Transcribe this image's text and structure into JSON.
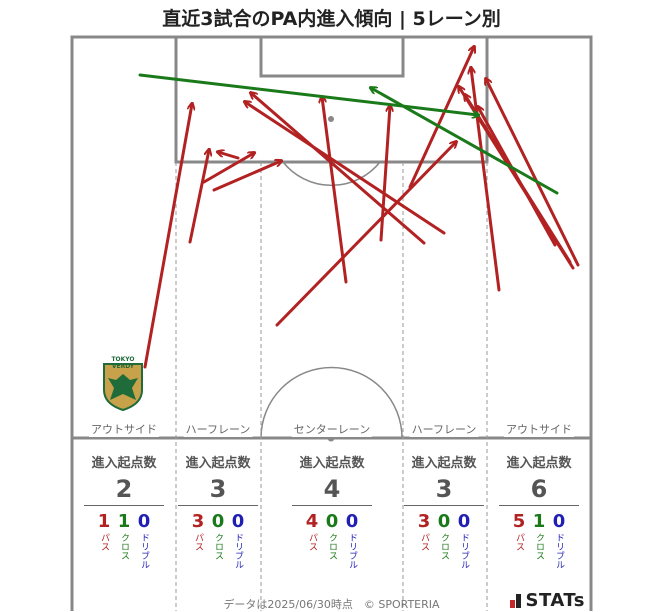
{
  "title": "直近3試合のPA内進入傾向 | 5レーン別",
  "lanes": [
    {
      "label": "アウトサイド",
      "header": "進入起点数",
      "total": "2",
      "pass": "1",
      "cross": "1",
      "dribble": "0"
    },
    {
      "label": "ハーフレーン",
      "header": "進入起点数",
      "total": "3",
      "pass": "3",
      "cross": "0",
      "dribble": "0"
    },
    {
      "label": "センターレーン",
      "header": "進入起点数",
      "total": "4",
      "pass": "4",
      "cross": "0",
      "dribble": "0"
    },
    {
      "label": "ハーフレーン",
      "header": "進入起点数",
      "total": "3",
      "pass": "3",
      "cross": "0",
      "dribble": "0"
    },
    {
      "label": "アウトサイド",
      "header": "進入起点数",
      "total": "6",
      "pass": "5",
      "cross": "1",
      "dribble": "0"
    }
  ],
  "categories": {
    "pass": "パス",
    "cross": "クロス",
    "dribble": "ドリブル"
  },
  "footer": "データは2025/06/30時点　© SPORTERIA",
  "brand": "STATs",
  "team_logo_text": "TOKYO VERDY",
  "colors": {
    "pass": "#b22222",
    "cross": "#1a7a1a",
    "dribble": "#1f1fb4",
    "line": "#888888"
  },
  "chart_data": {
    "type": "scatter",
    "arrows": [
      {
        "kind": "pass",
        "from": [
          145,
          367
        ],
        "to": [
          192,
          104
        ]
      },
      {
        "kind": "pass",
        "from": [
          190,
          242
        ],
        "to": [
          209,
          150
        ]
      },
      {
        "kind": "pass",
        "from": [
          204,
          182
        ],
        "to": [
          254,
          153
        ]
      },
      {
        "kind": "pass",
        "from": [
          214,
          190
        ],
        "to": [
          281,
          161
        ]
      },
      {
        "kind": "pass",
        "from": [
          238,
          158
        ],
        "to": [
          218,
          152
        ]
      },
      {
        "kind": "pass",
        "from": [
          346,
          282
        ],
        "to": [
          322,
          97
        ]
      },
      {
        "kind": "pass",
        "from": [
          381,
          240
        ],
        "to": [
          390,
          106
        ]
      },
      {
        "kind": "pass",
        "from": [
          444,
          233
        ],
        "to": [
          245,
          102
        ]
      },
      {
        "kind": "pass",
        "from": [
          424,
          243
        ],
        "to": [
          251,
          93
        ]
      },
      {
        "kind": "pass",
        "from": [
          277,
          325
        ],
        "to": [
          456,
          142
        ]
      },
      {
        "kind": "pass",
        "from": [
          410,
          187
        ],
        "to": [
          474,
          47
        ]
      },
      {
        "kind": "pass",
        "from": [
          499,
          290
        ],
        "to": [
          471,
          68
        ]
      },
      {
        "kind": "pass",
        "from": [
          578,
          265
        ],
        "to": [
          486,
          79
        ]
      },
      {
        "kind": "pass",
        "from": [
          573,
          268
        ],
        "to": [
          459,
          87
        ]
      },
      {
        "kind": "pass",
        "from": [
          570,
          262
        ],
        "to": [
          465,
          95
        ]
      },
      {
        "kind": "pass",
        "from": [
          555,
          245
        ],
        "to": [
          478,
          107
        ]
      },
      {
        "kind": "cross",
        "from": [
          140,
          75
        ],
        "to": [
          478,
          115
        ]
      },
      {
        "kind": "cross",
        "from": [
          557,
          193
        ],
        "to": [
          371,
          88
        ]
      }
    ]
  }
}
